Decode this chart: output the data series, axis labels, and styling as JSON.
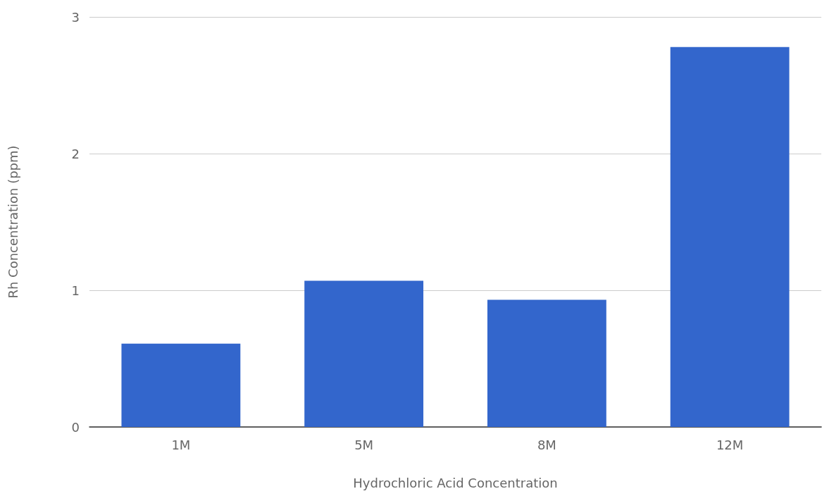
{
  "chart_data": {
    "type": "bar",
    "xlabel": "Hydrochloric Acid Concentration",
    "ylabel": "Rh Concentration (ppm)",
    "categories": [
      "1M",
      "5M",
      "8M",
      "12M"
    ],
    "values": [
      0.61,
      1.07,
      0.93,
      2.78
    ],
    "color": "#3366cc",
    "ylim": [
      0,
      3
    ],
    "yticks": [
      0,
      1,
      2,
      3
    ],
    "grid": "y"
  }
}
